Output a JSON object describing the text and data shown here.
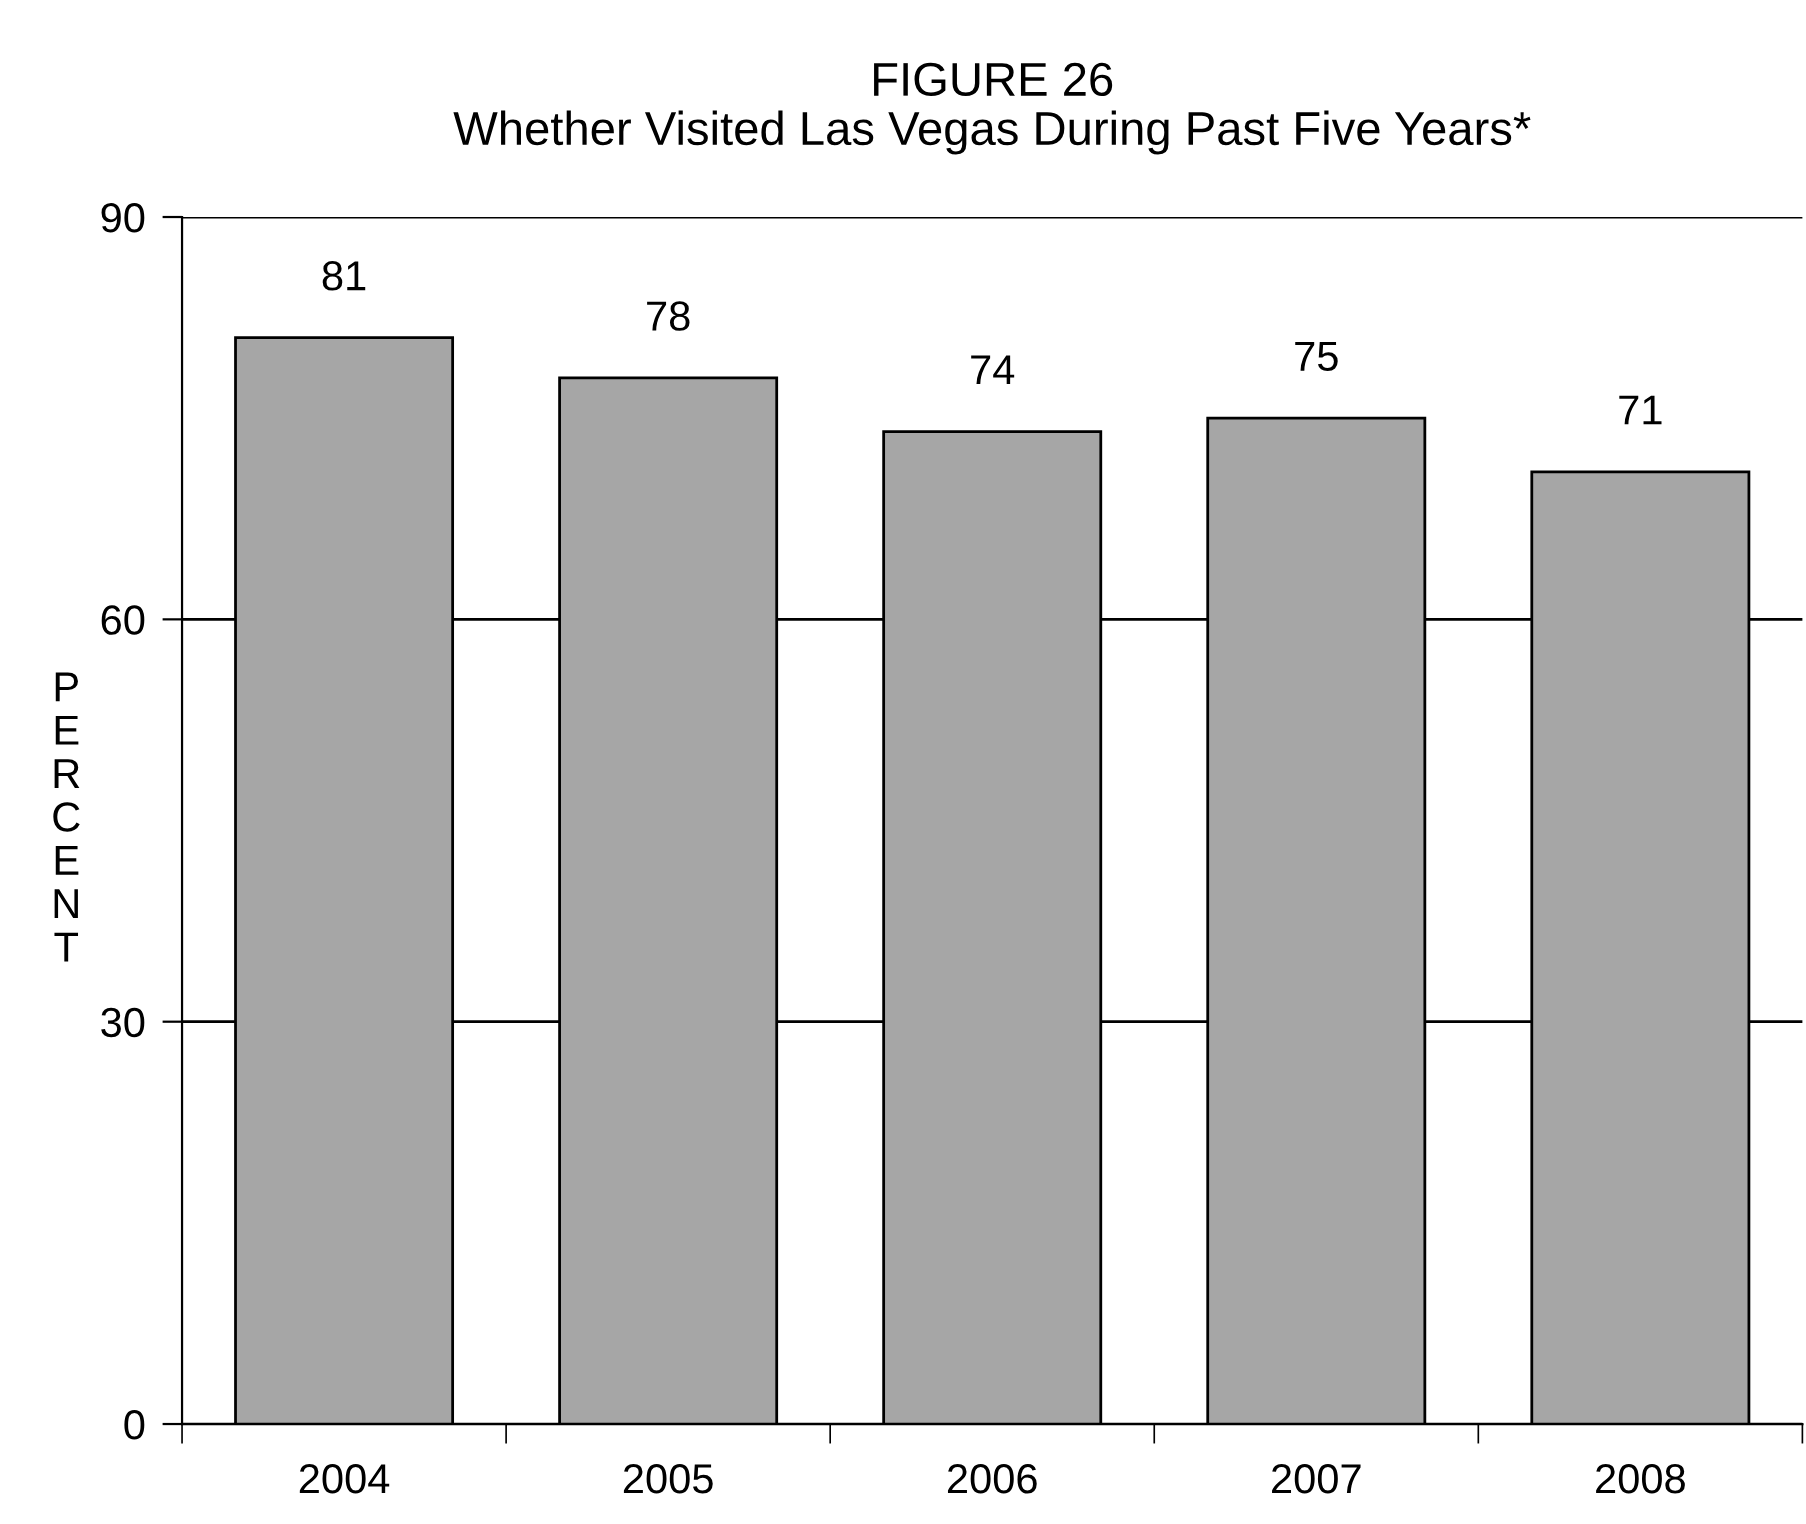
{
  "chart_data": {
    "type": "bar",
    "title": "FIGURE 26\nWhether Visited Las Vegas During Past Five Years*",
    "ylabel": "PERCENT",
    "categories": [
      "2004",
      "2005",
      "2006",
      "2007",
      "2008"
    ],
    "values": [
      81,
      78,
      74,
      75,
      71
    ],
    "color": "#a6a6a6",
    "ylim": [
      0,
      90
    ],
    "yticks": [
      0,
      30,
      60,
      90
    ],
    "grid": "y",
    "data_labels": true
  }
}
